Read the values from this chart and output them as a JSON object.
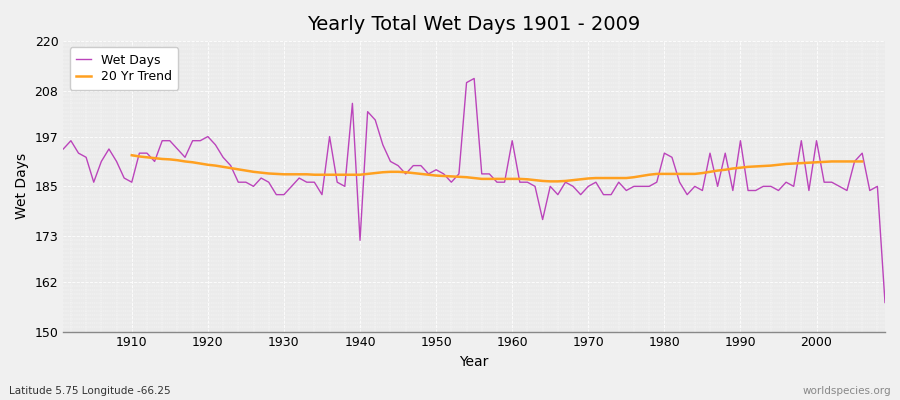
{
  "title": "Yearly Total Wet Days 1901 - 2009",
  "xlabel": "Year",
  "ylabel": "Wet Days",
  "subtitle": "Latitude 5.75 Longitude -66.25",
  "watermark": "worldspecies.org",
  "ylim": [
    150,
    220
  ],
  "yticks": [
    150,
    162,
    173,
    185,
    197,
    208,
    220
  ],
  "line_color": "#bb44bb",
  "trend_color": "#ffa020",
  "bg_color": "#f0f0f0",
  "plot_bg_color": "#ebebeb",
  "years": [
    1901,
    1902,
    1903,
    1904,
    1905,
    1906,
    1907,
    1908,
    1909,
    1910,
    1911,
    1912,
    1913,
    1914,
    1915,
    1916,
    1917,
    1918,
    1919,
    1920,
    1921,
    1922,
    1923,
    1924,
    1925,
    1926,
    1927,
    1928,
    1929,
    1930,
    1931,
    1932,
    1933,
    1934,
    1935,
    1936,
    1937,
    1938,
    1939,
    1940,
    1941,
    1942,
    1943,
    1944,
    1945,
    1946,
    1947,
    1948,
    1949,
    1950,
    1951,
    1952,
    1953,
    1954,
    1955,
    1956,
    1957,
    1958,
    1959,
    1960,
    1961,
    1962,
    1963,
    1964,
    1965,
    1966,
    1967,
    1968,
    1969,
    1970,
    1971,
    1972,
    1973,
    1974,
    1975,
    1976,
    1977,
    1978,
    1979,
    1980,
    1981,
    1982,
    1983,
    1984,
    1985,
    1986,
    1987,
    1988,
    1989,
    1990,
    1991,
    1992,
    1993,
    1994,
    1995,
    1996,
    1997,
    1998,
    1999,
    2000,
    2001,
    2002,
    2003,
    2004,
    2005,
    2006,
    2007,
    2008,
    2009
  ],
  "wet_days": [
    194,
    196,
    193,
    192,
    186,
    191,
    194,
    191,
    187,
    186,
    193,
    193,
    191,
    196,
    196,
    194,
    192,
    196,
    196,
    197,
    195,
    192,
    190,
    186,
    186,
    185,
    187,
    186,
    183,
    183,
    185,
    187,
    186,
    186,
    183,
    197,
    186,
    185,
    205,
    172,
    203,
    201,
    195,
    191,
    190,
    188,
    190,
    190,
    188,
    189,
    188,
    186,
    188,
    210,
    211,
    188,
    188,
    186,
    186,
    196,
    186,
    186,
    185,
    177,
    185,
    183,
    186,
    185,
    183,
    185,
    186,
    183,
    183,
    186,
    184,
    185,
    185,
    185,
    186,
    193,
    192,
    186,
    183,
    185,
    184,
    193,
    185,
    193,
    184,
    196,
    184,
    184,
    185,
    185,
    184,
    186,
    185,
    196,
    184,
    196,
    186,
    186,
    185,
    184,
    191,
    193,
    184,
    185,
    157
  ],
  "trend": [
    null,
    null,
    null,
    null,
    null,
    null,
    null,
    null,
    null,
    192.5,
    192.2,
    192.0,
    191.8,
    191.6,
    191.5,
    191.3,
    191.0,
    190.8,
    190.5,
    190.2,
    190.0,
    189.7,
    189.4,
    189.1,
    188.8,
    188.5,
    188.3,
    188.1,
    188.0,
    187.9,
    187.9,
    187.9,
    187.9,
    187.8,
    187.8,
    187.8,
    187.8,
    187.8,
    187.8,
    187.8,
    188.0,
    188.2,
    188.4,
    188.5,
    188.5,
    188.4,
    188.2,
    188.0,
    187.8,
    187.6,
    187.5,
    187.4,
    187.3,
    187.2,
    187.0,
    186.8,
    186.8,
    186.8,
    186.8,
    186.8,
    186.8,
    186.7,
    186.5,
    186.3,
    186.2,
    186.2,
    186.3,
    186.5,
    186.7,
    186.9,
    187.0,
    187.0,
    187.0,
    187.0,
    187.0,
    187.2,
    187.5,
    187.8,
    188.0,
    188.0,
    188.0,
    188.0,
    188.0,
    188.0,
    188.2,
    188.5,
    188.8,
    189.0,
    189.3,
    189.5,
    189.7,
    189.8,
    189.9,
    190.0,
    190.2,
    190.4,
    190.5,
    190.6,
    190.7,
    190.8,
    190.9,
    191.0,
    191.0,
    191.0,
    191.0,
    191.0,
    null,
    null
  ]
}
